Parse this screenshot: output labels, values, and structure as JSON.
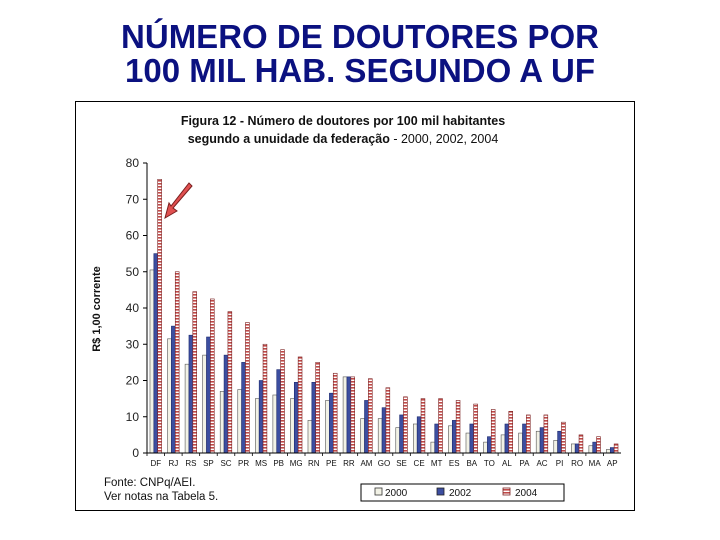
{
  "slide": {
    "title_line1": "NÚMERO DE DOUTORES POR",
    "title_line2": "100 MIL HAB. SEGUNDO A UF"
  },
  "colors": {
    "title": "#0b1180",
    "s2000": "#f2f2e6",
    "s2002": "#3c4ea0",
    "s2004": "#c04a48",
    "arrow": "#e05050"
  },
  "chart_data": {
    "type": "bar",
    "title_line1": "Figura 12 - Número de doutores por 100 mil habitantes",
    "title_line2_bold": "segundo a unuidade da federação",
    "title_line2_rest": " - 2000, 2002, 2004",
    "ylabel": "R$ 1,00 corrente",
    "ylim": [
      0,
      80
    ],
    "yticks": [
      0,
      10,
      20,
      30,
      40,
      50,
      60,
      70,
      80
    ],
    "grid": false,
    "legend_position": "bottom",
    "categories": [
      "DF",
      "RJ",
      "RS",
      "SP",
      "SC",
      "PR",
      "MS",
      "PB",
      "MG",
      "RN",
      "PE",
      "RR",
      "AM",
      "GO",
      "SE",
      "CE",
      "MT",
      "ES",
      "BA",
      "TO",
      "AL",
      "PA",
      "AC",
      "PI",
      "RO",
      "MA",
      "AP"
    ],
    "series": [
      {
        "name": "2000",
        "values": [
          50.5,
          31.5,
          24.5,
          27.0,
          17.0,
          17.5,
          15.0,
          16.0,
          15.0,
          9.0,
          14.5,
          21.0,
          9.5,
          9.5,
          7.0,
          8.0,
          3.0,
          7.5,
          5.5,
          3.0,
          5.0,
          5.5,
          6.0,
          3.5,
          2.5,
          2.0,
          1.0
        ]
      },
      {
        "name": "2002",
        "values": [
          55.0,
          35.0,
          32.5,
          32.0,
          27.0,
          25.0,
          20.0,
          23.0,
          19.5,
          19.5,
          16.5,
          21.0,
          14.5,
          12.5,
          10.5,
          10.0,
          8.0,
          9.0,
          8.0,
          4.5,
          8.0,
          8.0,
          7.0,
          6.0,
          2.5,
          3.0,
          1.5
        ]
      },
      {
        "name": "2004",
        "values": [
          75.5,
          50.0,
          44.5,
          42.5,
          39.0,
          36.0,
          30.0,
          28.5,
          26.5,
          25.0,
          22.0,
          21.0,
          20.5,
          18.0,
          15.5,
          15.0,
          15.0,
          14.5,
          13.5,
          12.0,
          11.5,
          10.5,
          10.5,
          8.5,
          5.0,
          4.5,
          2.5
        ]
      }
    ],
    "source_line1": "Fonte: CNPq/AEI.",
    "source_line2": "Ver notas na Tabela 5."
  }
}
